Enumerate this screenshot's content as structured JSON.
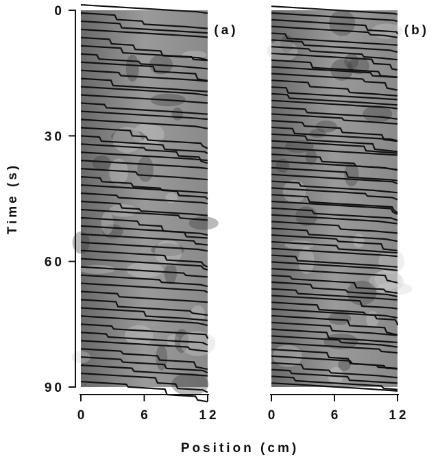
{
  "xlabel": "Position (cm)",
  "chart_data": [
    {
      "type": "image",
      "panel_label": "(a)",
      "ylabel": "Time (s)",
      "xlim": [
        0,
        12
      ],
      "xticks": [
        0,
        6,
        12
      ],
      "ylim": [
        0,
        90
      ],
      "yticks": [
        0,
        30,
        60,
        90
      ]
    },
    {
      "type": "image",
      "panel_label": "(b)",
      "xlim": [
        0,
        12
      ],
      "xticks": [
        0,
        6,
        12
      ],
      "ylim": [
        0,
        90
      ]
    }
  ]
}
